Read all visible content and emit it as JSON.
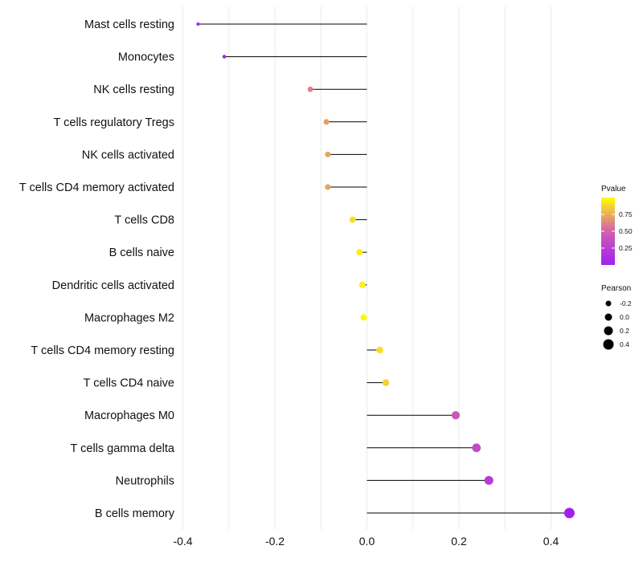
{
  "chart_data": {
    "type": "lollipop",
    "title": "",
    "xlabel": "",
    "ylabel": "",
    "xlim": [
      -0.4,
      0.45
    ],
    "x_ticks": [
      -0.4,
      -0.2,
      0.0,
      0.2,
      0.4
    ],
    "x_tick_labels": [
      "-0.4",
      "-0.2",
      "0.0",
      "0.2",
      "0.4"
    ],
    "grid": true,
    "categories": [
      "Mast cells resting",
      "Monocytes",
      "NK cells resting",
      "T cells regulatory  Tregs ",
      "NK cells activated",
      "T cells CD4 memory activated",
      "T cells CD8",
      "B cells naive",
      "Dendritic cells activated",
      "Macrophages M2",
      "T cells CD4 memory resting",
      "T cells CD4 naive",
      "Macrophages M0",
      "T cells gamma delta",
      "Neutrophils",
      "B cells memory"
    ],
    "pearson": [
      -0.367,
      -0.31,
      -0.123,
      -0.088,
      -0.085,
      -0.085,
      -0.031,
      -0.016,
      -0.01,
      -0.007,
      0.028,
      0.041,
      0.193,
      0.238,
      0.265,
      0.44
    ],
    "pvalue": [
      0.02,
      0.05,
      0.6,
      0.7,
      0.72,
      0.72,
      0.9,
      0.94,
      0.96,
      0.98,
      0.9,
      0.86,
      0.42,
      0.33,
      0.22,
      0.001
    ],
    "legend_color": {
      "title": "Pvalue",
      "ticks": [
        0.25,
        0.5,
        0.75
      ],
      "tick_labels": [
        "0.25",
        "0.50",
        "0.75"
      ],
      "range": [
        0.0,
        1.0
      ],
      "low_color": "#A020F0",
      "mid_color": "#D35FAE",
      "high_color": "#FFFF00"
    },
    "legend_size": {
      "title": "Pearson",
      "values": [
        -0.2,
        0.0,
        0.2,
        0.4
      ],
      "labels": [
        "-0.2",
        "0.0",
        "0.2",
        "0.4"
      ]
    },
    "legend_position": "right"
  }
}
